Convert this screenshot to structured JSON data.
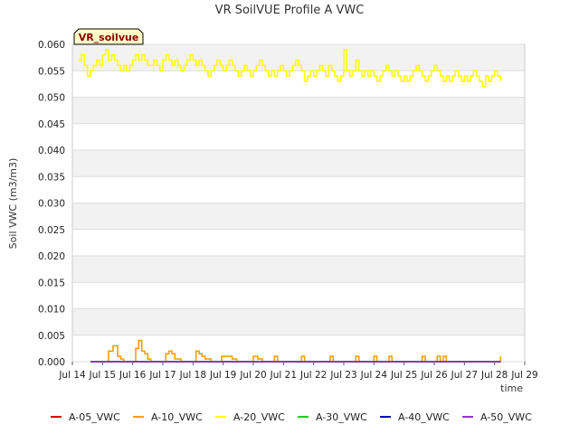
{
  "chart_data": {
    "type": "line",
    "title": "VR SoilVUE Profile A VWC",
    "xlabel": "time",
    "ylabel": "Soil VWC (m3/m3)",
    "site_badge": "VR_soilvue",
    "xlim": [
      14,
      29
    ],
    "ylim": [
      0,
      0.06
    ],
    "x_ticks": [
      "Jul 14",
      "Jul 15",
      "Jul 16",
      "Jul 17",
      "Jul 18",
      "Jul 19",
      "Jul 20",
      "Jul 21",
      "Jul 22",
      "Jul 23",
      "Jul 24",
      "Jul 25",
      "Jul 26",
      "Jul 27",
      "Jul 28",
      "Jul 29"
    ],
    "y_ticks": [
      "0.000",
      "0.005",
      "0.010",
      "0.015",
      "0.020",
      "0.025",
      "0.030",
      "0.035",
      "0.040",
      "0.045",
      "0.050",
      "0.055",
      "0.060"
    ],
    "grid": true,
    "legend_position": "bottom",
    "series": [
      {
        "name": "A-05_VWC",
        "color": "#dd0000",
        "x": [
          14.6,
          28.2
        ],
        "y": [
          0.0,
          0.0
        ]
      },
      {
        "name": "A-10_VWC",
        "color": "#f5a000",
        "x": [
          14.6,
          15.0,
          15.2,
          15.35,
          15.5,
          15.6,
          15.7,
          16.0,
          16.1,
          16.2,
          16.3,
          16.4,
          16.5,
          16.6,
          16.9,
          17.1,
          17.2,
          17.3,
          17.4,
          17.6,
          17.9,
          18.1,
          18.2,
          18.3,
          18.4,
          18.6,
          18.8,
          18.95,
          19.1,
          19.3,
          19.45,
          19.6,
          19.9,
          20.0,
          20.15,
          20.3,
          20.6,
          20.7,
          20.8,
          21.5,
          21.6,
          21.7,
          22.45,
          22.55,
          22.65,
          23.3,
          23.4,
          23.5,
          23.7,
          23.9,
          24.0,
          24.1,
          24.4,
          24.5,
          24.6,
          25.55,
          25.6,
          25.7,
          26.05,
          26.1,
          26.2,
          26.3,
          26.4,
          28.1,
          28.2
        ],
        "y": [
          0.0,
          0.0,
          0.002,
          0.003,
          0.001,
          0.0005,
          0.0,
          0.0,
          0.0025,
          0.004,
          0.002,
          0.0015,
          0.0005,
          0.0,
          0.0,
          0.0015,
          0.002,
          0.0015,
          0.0005,
          0.0,
          0.0,
          0.002,
          0.0015,
          0.001,
          0.0005,
          0.0,
          0.0,
          0.001,
          0.001,
          0.0005,
          0.0,
          0.0,
          0.0,
          0.001,
          0.0005,
          0.0,
          0.0,
          0.001,
          0.0,
          0.0,
          0.001,
          0.0,
          0.0,
          0.001,
          0.0,
          0.0,
          0.001,
          0.0,
          0.0,
          0.0,
          0.001,
          0.0,
          0.0,
          0.001,
          0.0,
          0.0,
          0.001,
          0.0,
          0.0,
          0.001,
          0.0,
          0.001,
          0.0,
          0.0,
          0.001
        ]
      },
      {
        "name": "A-20_VWC",
        "color": "#ffff00",
        "x": [
          14.2,
          14.3,
          14.4,
          14.5,
          14.6,
          14.7,
          14.8,
          14.9,
          15.0,
          15.1,
          15.2,
          15.3,
          15.4,
          15.5,
          15.6,
          15.7,
          15.8,
          15.9,
          16.0,
          16.1,
          16.2,
          16.3,
          16.4,
          16.5,
          16.6,
          16.7,
          16.8,
          16.9,
          17.0,
          17.1,
          17.2,
          17.3,
          17.4,
          17.5,
          17.6,
          17.7,
          17.8,
          17.9,
          18.0,
          18.1,
          18.2,
          18.3,
          18.4,
          18.5,
          18.6,
          18.7,
          18.8,
          18.9,
          19.0,
          19.1,
          19.2,
          19.3,
          19.4,
          19.5,
          19.6,
          19.7,
          19.8,
          19.9,
          20.0,
          20.1,
          20.2,
          20.3,
          20.4,
          20.5,
          20.6,
          20.7,
          20.8,
          20.9,
          21.0,
          21.1,
          21.2,
          21.3,
          21.4,
          21.5,
          21.6,
          21.7,
          21.8,
          21.9,
          22.0,
          22.1,
          22.2,
          22.3,
          22.4,
          22.5,
          22.6,
          22.7,
          22.8,
          22.9,
          23.0,
          23.1,
          23.2,
          23.3,
          23.4,
          23.5,
          23.6,
          23.7,
          23.8,
          23.9,
          24.0,
          24.1,
          24.2,
          24.3,
          24.4,
          24.5,
          24.6,
          24.7,
          24.8,
          24.9,
          25.0,
          25.1,
          25.2,
          25.3,
          25.4,
          25.5,
          25.6,
          25.7,
          25.8,
          25.9,
          26.0,
          26.1,
          26.2,
          26.3,
          26.4,
          26.5,
          26.6,
          26.7,
          26.8,
          26.9,
          27.0,
          27.1,
          27.2,
          27.3,
          27.4,
          27.5,
          27.6,
          27.7,
          27.8,
          27.9,
          28.0,
          28.1,
          28.2
        ],
        "y": [
          0.057,
          0.058,
          0.056,
          0.054,
          0.055,
          0.056,
          0.057,
          0.056,
          0.058,
          0.059,
          0.057,
          0.058,
          0.057,
          0.056,
          0.055,
          0.056,
          0.055,
          0.056,
          0.057,
          0.058,
          0.057,
          0.058,
          0.057,
          0.056,
          0.056,
          0.057,
          0.056,
          0.055,
          0.057,
          0.058,
          0.057,
          0.056,
          0.057,
          0.056,
          0.055,
          0.056,
          0.057,
          0.058,
          0.057,
          0.056,
          0.057,
          0.056,
          0.055,
          0.054,
          0.055,
          0.056,
          0.057,
          0.056,
          0.055,
          0.056,
          0.057,
          0.056,
          0.055,
          0.054,
          0.055,
          0.056,
          0.055,
          0.054,
          0.055,
          0.056,
          0.057,
          0.056,
          0.055,
          0.054,
          0.055,
          0.054,
          0.055,
          0.056,
          0.055,
          0.054,
          0.055,
          0.056,
          0.057,
          0.056,
          0.055,
          0.053,
          0.054,
          0.055,
          0.054,
          0.055,
          0.056,
          0.055,
          0.054,
          0.056,
          0.055,
          0.054,
          0.053,
          0.054,
          0.059,
          0.055,
          0.054,
          0.055,
          0.057,
          0.055,
          0.054,
          0.055,
          0.054,
          0.055,
          0.054,
          0.053,
          0.054,
          0.055,
          0.056,
          0.055,
          0.054,
          0.055,
          0.054,
          0.053,
          0.054,
          0.053,
          0.054,
          0.055,
          0.056,
          0.055,
          0.054,
          0.053,
          0.054,
          0.055,
          0.056,
          0.055,
          0.054,
          0.053,
          0.054,
          0.053,
          0.054,
          0.055,
          0.054,
          0.053,
          0.054,
          0.053,
          0.054,
          0.055,
          0.054,
          0.053,
          0.052,
          0.054,
          0.053,
          0.054,
          0.055,
          0.054,
          0.053
        ]
      },
      {
        "name": "A-30_VWC",
        "color": "#22cc22",
        "x": [
          14.6,
          28.2
        ],
        "y": [
          0.0,
          0.0
        ]
      },
      {
        "name": "A-40_VWC",
        "color": "#0000bb",
        "x": [
          14.6,
          28.2
        ],
        "y": [
          0.0,
          0.0
        ]
      },
      {
        "name": "A-50_VWC",
        "color": "#9933cc",
        "x": [
          14.6,
          28.2
        ],
        "y": [
          0.0,
          0.0
        ]
      }
    ]
  }
}
